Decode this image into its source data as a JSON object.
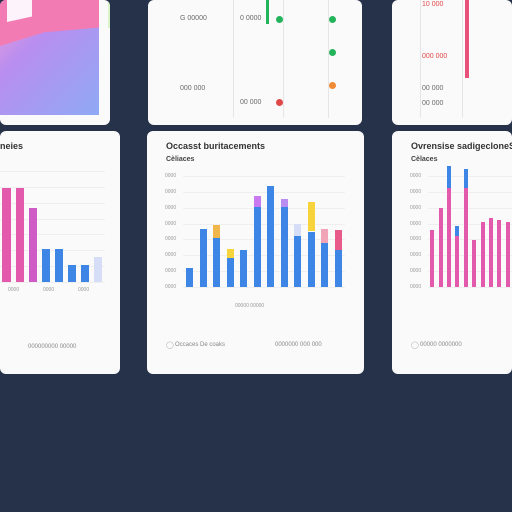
{
  "top": {
    "left_blend": {
      "colors": [
        "#b98ef0",
        "#8fa9f5",
        "#f27bb4"
      ]
    },
    "middle": {
      "labels": [
        "G 00000",
        "0 0000",
        "000 000",
        "00 000"
      ],
      "dot_colors": [
        "#22b35b",
        "#22b35b",
        "#f08a34",
        "#e04848"
      ]
    },
    "right": {
      "labels": [
        "10 000",
        "000 000",
        "00 000",
        "00 000"
      ],
      "bar_color": "#e8527a"
    }
  },
  "cards": {
    "left": {
      "title": "neies",
      "footer": "000000000 00000",
      "chart_data": {
        "type": "bar",
        "values": [
          68,
          68,
          53,
          24,
          24,
          12,
          12,
          18
        ],
        "colors": [
          "#e35aad",
          "#e35aad",
          "#cf5cc6",
          "#3d86e5",
          "#3d86e5",
          "#3d86e5",
          "#3d86e5",
          "#d6def7"
        ],
        "x_tick_labels": [
          "0000",
          "0000",
          "0000"
        ]
      }
    },
    "middle": {
      "title": "Occasst buritacements",
      "subtitle": "Cèliaces",
      "footer_left": "Occaces  De coaks",
      "footer_right": "0000000  000 000",
      "y_ticks": [
        "0000",
        "0000",
        "0000",
        "0000",
        "0000",
        "0000",
        "0000",
        "0000"
      ],
      "x_axis_label": "00000 00000",
      "chart_data": {
        "type": "bar",
        "values": [
          14,
          42,
          35,
          21,
          27,
          58,
          73,
          58,
          37,
          40,
          32,
          27
        ],
        "overlay": [
          0,
          0,
          27,
          18,
          0,
          22,
          0,
          15,
          23,
          60,
          28,
          40
        ],
        "colors": [
          "#3d86e5",
          "#3d86e5",
          "#3d86e5",
          "#3d86e5",
          "#3d86e5",
          "#3d86e5",
          "#3d86e5",
          "#3d86e5",
          "#3d86e5",
          "#3d86e5",
          "#3d86e5",
          "#3d86e5"
        ],
        "overlay_colors": [
          "#f0b64a",
          "#f0b64a",
          "#f0b64a",
          "#f7d43c",
          "#d56fe3",
          "#c879f0",
          "#d6def7",
          "#b98ef0",
          "#d6def7",
          "#f7d43c",
          "#f1a4b7",
          "#e75a8a"
        ]
      }
    },
    "right": {
      "title": "Ovrensise sadigecloneS",
      "subtitle": "Cèlaces",
      "footer": "00000  0000000",
      "y_ticks": [
        "0000",
        "0000",
        "0000",
        "0000",
        "0000",
        "0000",
        "0000",
        "0000"
      ],
      "chart_data": {
        "type": "bar",
        "values": [
          41,
          57,
          71,
          37,
          71,
          34,
          47,
          50,
          48,
          47
        ],
        "overlay": [
          0,
          0,
          47,
          20,
          40,
          0,
          0,
          0,
          0,
          0
        ],
        "colors": [
          "#e35aad",
          "#e35aad",
          "#e35aad",
          "#e35aad",
          "#e35aad",
          "#e35aad",
          "#e35aad",
          "#e35aad",
          "#e35aad",
          "#e35aad"
        ],
        "overlay_colors": [
          "#d6def7",
          "#d6def7",
          "#3d86e5",
          "#3d86e5",
          "#3d86e5",
          "#d6def7",
          "#d6def7",
          "#d6def7",
          "#d6def7",
          "#d6def7"
        ]
      }
    }
  }
}
